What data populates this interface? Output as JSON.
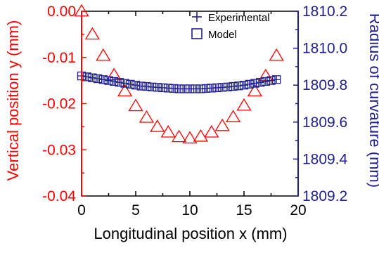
{
  "chart_data": {
    "type": "scatter",
    "title": "",
    "xlabel": "Longitudinal position x (mm)",
    "ylabel_left": "Vertical position y (mm)",
    "ylabel_right": "Radius of curvature (mm)",
    "xlim": [
      0,
      20
    ],
    "ylim_left": [
      -0.04,
      0.0
    ],
    "ylim_right": [
      1809.2,
      1810.2
    ],
    "x_ticks": [
      "0",
      "5",
      "10",
      "15",
      "20"
    ],
    "y_left_ticks": [
      "0.00",
      "-0.01",
      "-0.02",
      "-0.03",
      "-0.04"
    ],
    "y_right_ticks": [
      "1810.2",
      "1810.0",
      "1809.8",
      "1809.6",
      "1809.4",
      "1809.2"
    ],
    "grid": false,
    "legend_position": "top-right",
    "colors": {
      "left_axis": "#ff0000",
      "right_axis": "#1f1f8f",
      "axis": "#000000"
    },
    "series": [
      {
        "name": "",
        "axis": "left",
        "marker": "triangle",
        "color": "#ff0000",
        "x": [
          0,
          1,
          2,
          3,
          4,
          5,
          6,
          7,
          8,
          9,
          10,
          11,
          12,
          13,
          14,
          15,
          16,
          17,
          18
        ],
        "y": [
          0.0,
          -0.005,
          -0.0096,
          -0.0138,
          -0.0173,
          -0.0205,
          -0.023,
          -0.025,
          -0.0262,
          -0.0272,
          -0.0275,
          -0.0271,
          -0.0262,
          -0.0248,
          -0.0229,
          -0.0204,
          -0.0173,
          -0.014,
          -0.0096
        ]
      },
      {
        "name": "Experimental",
        "axis": "right",
        "marker": "plus",
        "color": "#1f1f8f",
        "x": [
          0,
          0.5,
          1,
          1.5,
          2,
          2.5,
          3,
          3.5,
          4,
          4.5,
          5,
          5.5,
          6,
          6.5,
          7,
          7.5,
          8,
          8.5,
          9,
          9.5,
          10,
          10.5,
          11,
          11.5,
          12,
          12.5,
          13,
          13.5,
          14,
          14.5,
          15,
          15.5,
          16,
          16.5,
          17,
          17.5,
          18
        ],
        "y": [
          1809.85,
          1809.845,
          1809.84,
          1809.835,
          1809.83,
          1809.825,
          1809.82,
          1809.815,
          1809.81,
          1809.805,
          1809.8,
          1809.795,
          1809.793,
          1809.79,
          1809.788,
          1809.786,
          1809.784,
          1809.782,
          1809.78,
          1809.78,
          1809.78,
          1809.78,
          1809.78,
          1809.782,
          1809.784,
          1809.786,
          1809.788,
          1809.79,
          1809.793,
          1809.796,
          1809.8,
          1809.805,
          1809.81,
          1809.815,
          1809.82,
          1809.825,
          1809.83
        ]
      },
      {
        "name": "Model",
        "axis": "right",
        "marker": "square",
        "color": "#1f1f8f",
        "x": [
          0,
          0.5,
          1,
          1.5,
          2,
          2.5,
          3,
          3.5,
          4,
          4.5,
          5,
          5.5,
          6,
          6.5,
          7,
          7.5,
          8,
          8.5,
          9,
          9.5,
          10,
          10.5,
          11,
          11.5,
          12,
          12.5,
          13,
          13.5,
          14,
          14.5,
          15,
          15.5,
          16,
          16.5,
          17,
          17.5,
          18
        ],
        "y": [
          1809.85,
          1809.845,
          1809.84,
          1809.835,
          1809.83,
          1809.825,
          1809.82,
          1809.815,
          1809.81,
          1809.805,
          1809.8,
          1809.795,
          1809.793,
          1809.79,
          1809.788,
          1809.786,
          1809.784,
          1809.782,
          1809.78,
          1809.78,
          1809.78,
          1809.78,
          1809.78,
          1809.782,
          1809.784,
          1809.786,
          1809.788,
          1809.79,
          1809.793,
          1809.796,
          1809.8,
          1809.805,
          1809.81,
          1809.815,
          1809.82,
          1809.825,
          1809.83
        ]
      }
    ]
  }
}
